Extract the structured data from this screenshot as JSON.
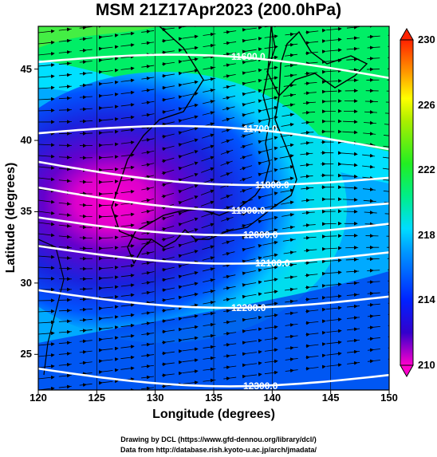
{
  "title": "MSM 21Z17Apr2023 (200.0hPa)",
  "x_axis": {
    "label": "Longitude (degrees)",
    "range": [
      120,
      150
    ],
    "ticks": [
      "120",
      "125",
      "130",
      "135",
      "140",
      "145",
      "150"
    ]
  },
  "y_axis": {
    "label": "Latitude  (degrees)",
    "range": [
      22.5,
      48
    ],
    "ticks": [
      "25",
      "30",
      "35",
      "40",
      "45"
    ]
  },
  "colorbar": {
    "range": [
      210,
      230
    ],
    "ticks": [
      "210",
      "214",
      "218",
      "222",
      "226",
      "230"
    ],
    "colors": [
      "#ff00cc",
      "#3300cc",
      "#0022ff",
      "#00ccff",
      "#00ee66",
      "#88ee00",
      "#ffff00",
      "#ff8800",
      "#ff2200"
    ]
  },
  "contours": [
    {
      "label": "11600.0",
      "lat": 45.5
    },
    {
      "label": "11700.0",
      "lat": 40.5
    },
    {
      "label": "11800.0",
      "lat": 38.5
    },
    {
      "label": "11900.0",
      "lat": 36.7
    },
    {
      "label": "12000.0",
      "lat": 34.6
    },
    {
      "label": "12100.0",
      "lat": 32.6
    },
    {
      "label": "12200.0",
      "lat": 29.5
    },
    {
      "label": "12300.0",
      "lat": 24.0
    }
  ],
  "credits": {
    "line1": "Drawing by DCL (https://www.gfd-dennou.org/library/dcl/)",
    "line2": "Data from http://database.rish.kyoto-u.ac.jp/arch/jmadata/"
  }
}
